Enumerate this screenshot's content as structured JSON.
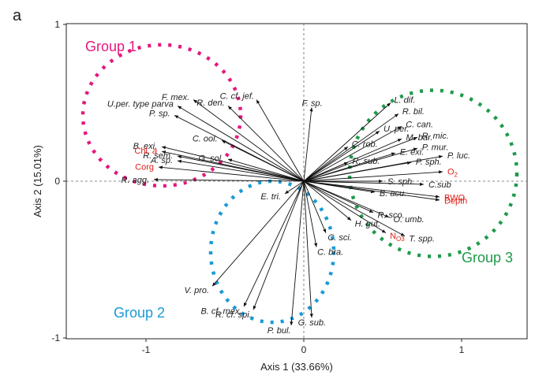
{
  "panel_label": "a",
  "chart_data": {
    "type": "scatter",
    "subtype": "biplot",
    "xlabel": "Axis 1 (33.66%)",
    "ylabel": "Axis 2 (15.01%)",
    "xlim": [
      -1.5,
      1.5
    ],
    "ylim": [
      -1.02,
      1.02
    ],
    "xticks": [
      "-1",
      "0",
      "1"
    ],
    "yticks": [
      "1",
      "0",
      "-1"
    ],
    "grid": false,
    "reference_lines": "dashed lines at x=0 and y=0",
    "groups": [
      {
        "label": "Group 1",
        "color": "#e5177e",
        "center": [
          -0.9,
          0.42
        ],
        "rx": 0.5,
        "ry": 0.45
      },
      {
        "label": "Group 2",
        "color": "#1a9ad6",
        "center": [
          -0.2,
          -0.45
        ],
        "rx": 0.39,
        "ry": 0.45
      },
      {
        "label": "Group 3",
        "color": "#1e9b4b",
        "center": [
          0.82,
          0.05
        ],
        "rx": 0.53,
        "ry": 0.53
      }
    ],
    "vectors": [
      {
        "label": "U.per. type parva",
        "x": -0.8,
        "y": 0.48,
        "color": "#222222",
        "italic": true
      },
      {
        "label": "F. mex.",
        "x": -0.7,
        "y": 0.52,
        "color": "#222222",
        "italic": true
      },
      {
        "label": "R. den.",
        "x": -0.48,
        "y": 0.48,
        "color": "#222222",
        "italic": true
      },
      {
        "label": "C. cf. jef.",
        "x": -0.3,
        "y": 0.52,
        "color": "#222222",
        "italic": true
      },
      {
        "label": "F. sp.",
        "x": 0.05,
        "y": 0.47,
        "color": "#222222",
        "italic": true
      },
      {
        "label": "P. sp.",
        "x": -0.82,
        "y": 0.42,
        "color": "#222222",
        "italic": true
      },
      {
        "label": "C. ool.",
        "x": -0.52,
        "y": 0.26,
        "color": "#222222",
        "italic": true
      },
      {
        "label": "B. exi.",
        "x": -0.9,
        "y": 0.22,
        "color": "#222222",
        "italic": true
      },
      {
        "label": "R. sem.",
        "x": -0.8,
        "y": 0.16,
        "color": "#222222",
        "italic": true
      },
      {
        "label": "G. sol.",
        "x": -0.48,
        "y": 0.14,
        "color": "#222222",
        "italic": true
      },
      {
        "label": "Chl. a",
        "x": -0.9,
        "y": 0.19,
        "color": "#e0201b",
        "italic": false
      },
      {
        "label": "A. sp.",
        "x": -0.8,
        "y": 0.13,
        "color": "#222222",
        "italic": true
      },
      {
        "label": "Corg",
        "x": -0.92,
        "y": 0.09,
        "color": "#e0201b",
        "italic": false
      },
      {
        "label": "R. agg.",
        "x": -0.95,
        "y": 0.01,
        "color": "#222222",
        "italic": true
      },
      {
        "label": "E. tri.",
        "x": -0.12,
        "y": -0.08,
        "color": "#222222",
        "italic": true
      },
      {
        "label": "L. dif.",
        "x": 0.55,
        "y": 0.5,
        "color": "#222222",
        "italic": true
      },
      {
        "label": "R. bil.",
        "x": 0.6,
        "y": 0.43,
        "color": "#222222",
        "italic": true
      },
      {
        "label": "U. per.",
        "x": 0.48,
        "y": 0.32,
        "color": "#222222",
        "italic": true
      },
      {
        "label": "C. can.",
        "x": 0.62,
        "y": 0.35,
        "color": "#222222",
        "italic": true
      },
      {
        "label": "R. mic.",
        "x": 0.72,
        "y": 0.28,
        "color": "#222222",
        "italic": true
      },
      {
        "label": "M. bar.",
        "x": 0.62,
        "y": 0.27,
        "color": "#222222",
        "italic": true
      },
      {
        "label": "C. rob.",
        "x": 0.28,
        "y": 0.22,
        "color": "#222222",
        "italic": true
      },
      {
        "label": "P. mur.",
        "x": 0.72,
        "y": 0.21,
        "color": "#222222",
        "italic": true
      },
      {
        "label": "P. luc.",
        "x": 0.88,
        "y": 0.16,
        "color": "#222222",
        "italic": true
      },
      {
        "label": "E. exi.",
        "x": 0.58,
        "y": 0.18,
        "color": "#222222",
        "italic": true
      },
      {
        "label": "R. sub.",
        "x": 0.28,
        "y": 0.12,
        "color": "#222222",
        "italic": true
      },
      {
        "label": "P. sph.",
        "x": 0.68,
        "y": 0.12,
        "color": "#222222",
        "italic": true
      },
      {
        "label": "O2",
        "x": 0.88,
        "y": 0.06,
        "color": "#e0201b",
        "italic": false
      },
      {
        "label": "S. sph.",
        "x": 0.5,
        "y": 0.0,
        "color": "#222222",
        "italic": true
      },
      {
        "label": "C.sub",
        "x": 0.76,
        "y": -0.02,
        "color": "#222222",
        "italic": true
      },
      {
        "label": "B. acu.",
        "x": 0.45,
        "y": -0.07,
        "color": "#222222",
        "italic": true
      },
      {
        "label": "BWO",
        "x": 0.86,
        "y": -0.1,
        "color": "#e0201b",
        "italic": false
      },
      {
        "label": "Depth",
        "x": 0.86,
        "y": -0.12,
        "color": "#e0201b",
        "italic": false
      },
      {
        "label": "R. sco.",
        "x": 0.44,
        "y": -0.2,
        "color": "#222222",
        "italic": true
      },
      {
        "label": "O. umb.",
        "x": 0.54,
        "y": -0.23,
        "color": "#222222",
        "italic": true
      },
      {
        "label": "H. gut.",
        "x": 0.3,
        "y": -0.25,
        "color": "#222222",
        "italic": true
      },
      {
        "label": "T. spp.",
        "x": 0.64,
        "y": -0.35,
        "color": "#222222",
        "italic": true
      },
      {
        "label": "NO3",
        "x": 0.52,
        "y": -0.33,
        "color": "#e0201b",
        "italic": false
      },
      {
        "label": "C. sci.",
        "x": 0.14,
        "y": -0.33,
        "color": "#222222",
        "italic": true
      },
      {
        "label": "C. bra.",
        "x": 0.08,
        "y": -0.42,
        "color": "#222222",
        "italic": true
      },
      {
        "label": "V. pro.",
        "x": -0.58,
        "y": -0.67,
        "color": "#222222",
        "italic": true
      },
      {
        "label": "B. cf. mex.",
        "x": -0.38,
        "y": -0.8,
        "color": "#222222",
        "italic": true
      },
      {
        "label": "R. cf. spi.",
        "x": -0.32,
        "y": -0.82,
        "color": "#222222",
        "italic": true
      },
      {
        "label": "P. bul.",
        "x": -0.08,
        "y": -0.92,
        "color": "#222222",
        "italic": true
      },
      {
        "label": "G. sub.",
        "x": 0.05,
        "y": -0.87,
        "color": "#222222",
        "italic": true
      }
    ]
  }
}
